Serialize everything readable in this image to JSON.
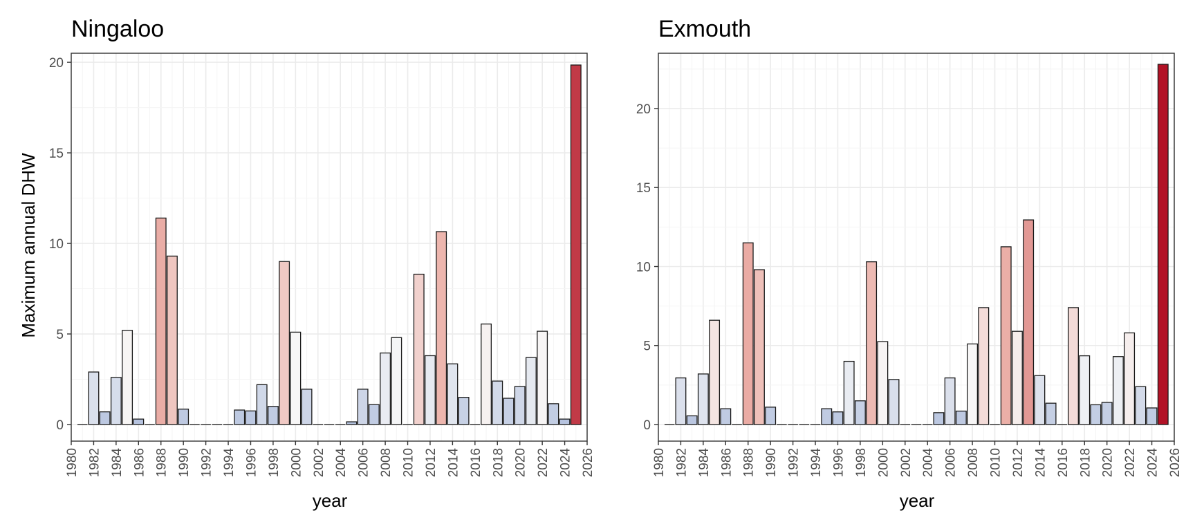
{
  "chart_data": [
    {
      "type": "bar",
      "title": "Ningaloo",
      "xlabel": "year",
      "ylabel": "Maximum annual DHW",
      "xlim": [
        1980,
        2026
      ],
      "ylim": [
        0,
        20.5
      ],
      "yticks": [
        0,
        5,
        10,
        15,
        20
      ],
      "xticks": [
        1980,
        1982,
        1984,
        1986,
        1988,
        1990,
        1992,
        1994,
        1996,
        1998,
        2000,
        2002,
        2004,
        2006,
        2008,
        2010,
        2012,
        2014,
        2016,
        2018,
        2020,
        2022,
        2024,
        2026
      ],
      "grid": true,
      "fill_scale": "diverging blue-white-red by value",
      "x": [
        1981,
        1982,
        1983,
        1984,
        1985,
        1986,
        1987,
        1988,
        1989,
        1990,
        1991,
        1992,
        1993,
        1994,
        1995,
        1996,
        1997,
        1998,
        1999,
        2000,
        2001,
        2002,
        2003,
        2004,
        2005,
        2006,
        2007,
        2008,
        2009,
        2010,
        2011,
        2012,
        2013,
        2014,
        2015,
        2016,
        2017,
        2018,
        2019,
        2020,
        2021,
        2022,
        2023,
        2024,
        2025
      ],
      "values": [
        0,
        2.9,
        0.7,
        2.6,
        5.2,
        0.3,
        0,
        11.4,
        9.3,
        0.85,
        0,
        0,
        0,
        0,
        0.8,
        0.75,
        2.2,
        1.0,
        9.0,
        5.1,
        1.95,
        0,
        0,
        0,
        0.15,
        1.95,
        1.1,
        3.95,
        4.8,
        0,
        8.3,
        3.8,
        10.65,
        3.35,
        1.5,
        0,
        5.55,
        2.4,
        1.45,
        2.1,
        3.7,
        5.15,
        1.15,
        0.3,
        19.85
      ]
    },
    {
      "type": "bar",
      "title": "Exmouth",
      "xlabel": "year",
      "ylabel": "",
      "xlim": [
        1980,
        2026
      ],
      "ylim": [
        0,
        23.5
      ],
      "yticks": [
        0,
        5,
        10,
        15,
        20
      ],
      "xticks": [
        1980,
        1982,
        1984,
        1986,
        1988,
        1990,
        1992,
        1994,
        1996,
        1998,
        2000,
        2002,
        2004,
        2006,
        2008,
        2010,
        2012,
        2014,
        2016,
        2018,
        2020,
        2022,
        2024,
        2026
      ],
      "grid": true,
      "fill_scale": "diverging blue-white-red by value",
      "x": [
        1981,
        1982,
        1983,
        1984,
        1985,
        1986,
        1987,
        1988,
        1989,
        1990,
        1991,
        1992,
        1993,
        1994,
        1995,
        1996,
        1997,
        1998,
        1999,
        2000,
        2001,
        2002,
        2003,
        2004,
        2005,
        2006,
        2007,
        2008,
        2009,
        2010,
        2011,
        2012,
        2013,
        2014,
        2015,
        2016,
        2017,
        2018,
        2019,
        2020,
        2021,
        2022,
        2023,
        2024,
        2025
      ],
      "values": [
        0,
        2.95,
        0.55,
        3.2,
        6.6,
        1.0,
        0,
        11.5,
        9.8,
        1.1,
        0,
        0,
        0,
        0,
        1.0,
        0.8,
        4.0,
        1.5,
        10.3,
        5.25,
        2.85,
        0,
        0,
        0,
        0.75,
        2.95,
        0.85,
        5.1,
        7.4,
        0,
        11.25,
        5.9,
        12.95,
        3.1,
        1.35,
        0,
        7.4,
        4.35,
        1.25,
        1.4,
        4.3,
        5.8,
        2.4,
        1.05,
        22.8
      ]
    }
  ]
}
